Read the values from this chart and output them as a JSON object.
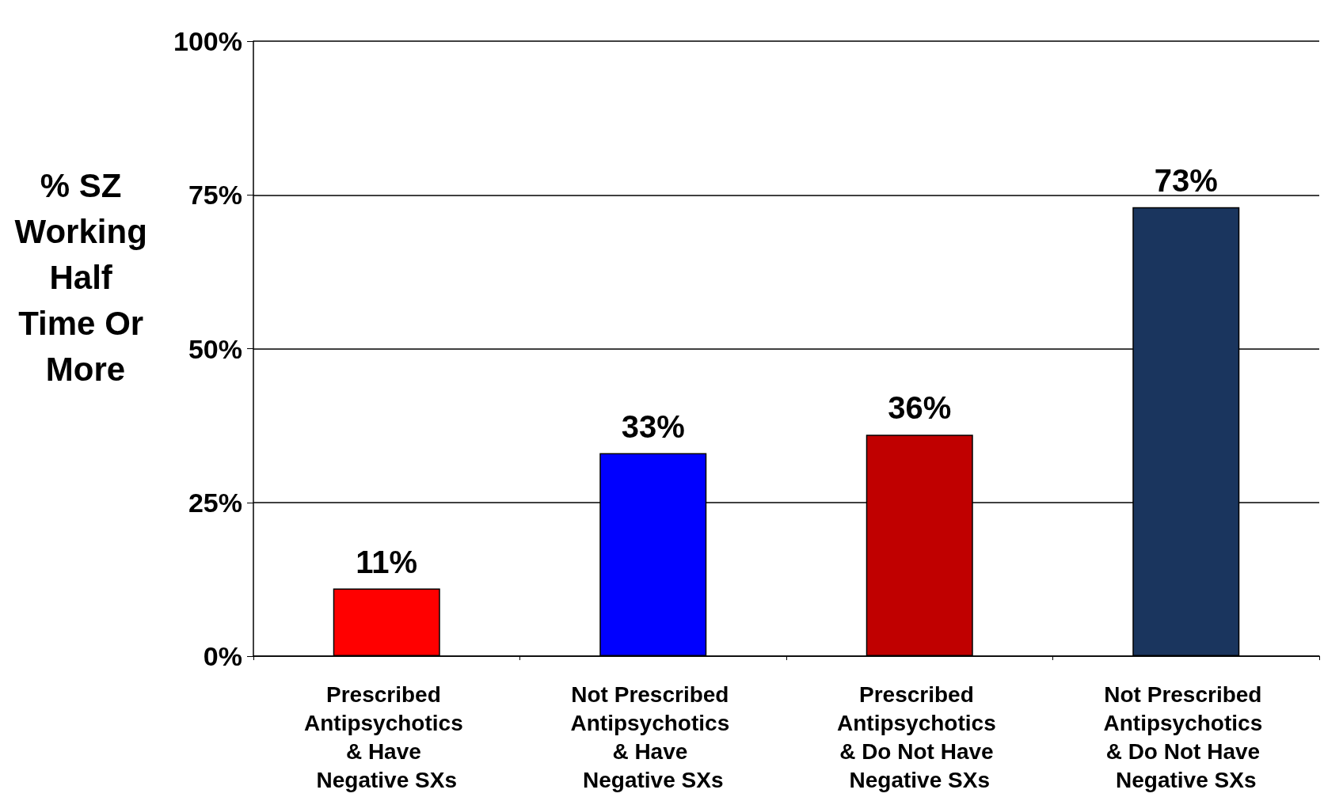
{
  "chart_data": {
    "type": "bar",
    "ylabel": "% SZ Working Half Time Or More",
    "categories": [
      "Prescribed Antipsychotics & Have Negative SXs",
      "Not Prescribed Antipsychotics & Have Negative SXs",
      "Prescribed Antipsychotics & Do Not Have Negative SXs",
      "Not Prescribed Antipsychotics & Do Not Have Negative SXs"
    ],
    "values": [
      11,
      33,
      36,
      73
    ],
    "colors": [
      "#ff0000",
      "#0000ff",
      "#c00000",
      "#1a355e"
    ],
    "value_labels": [
      "11%",
      "33%",
      "36%",
      "73%"
    ],
    "ylim": [
      0,
      100
    ],
    "yticks": [
      {
        "value": 0,
        "label": "0%"
      },
      {
        "value": 25,
        "label": "25%"
      },
      {
        "value": 50,
        "label": "50%"
      },
      {
        "value": 75,
        "label": "75%"
      },
      {
        "value": 100,
        "label": "100%"
      }
    ],
    "grid": "y"
  }
}
